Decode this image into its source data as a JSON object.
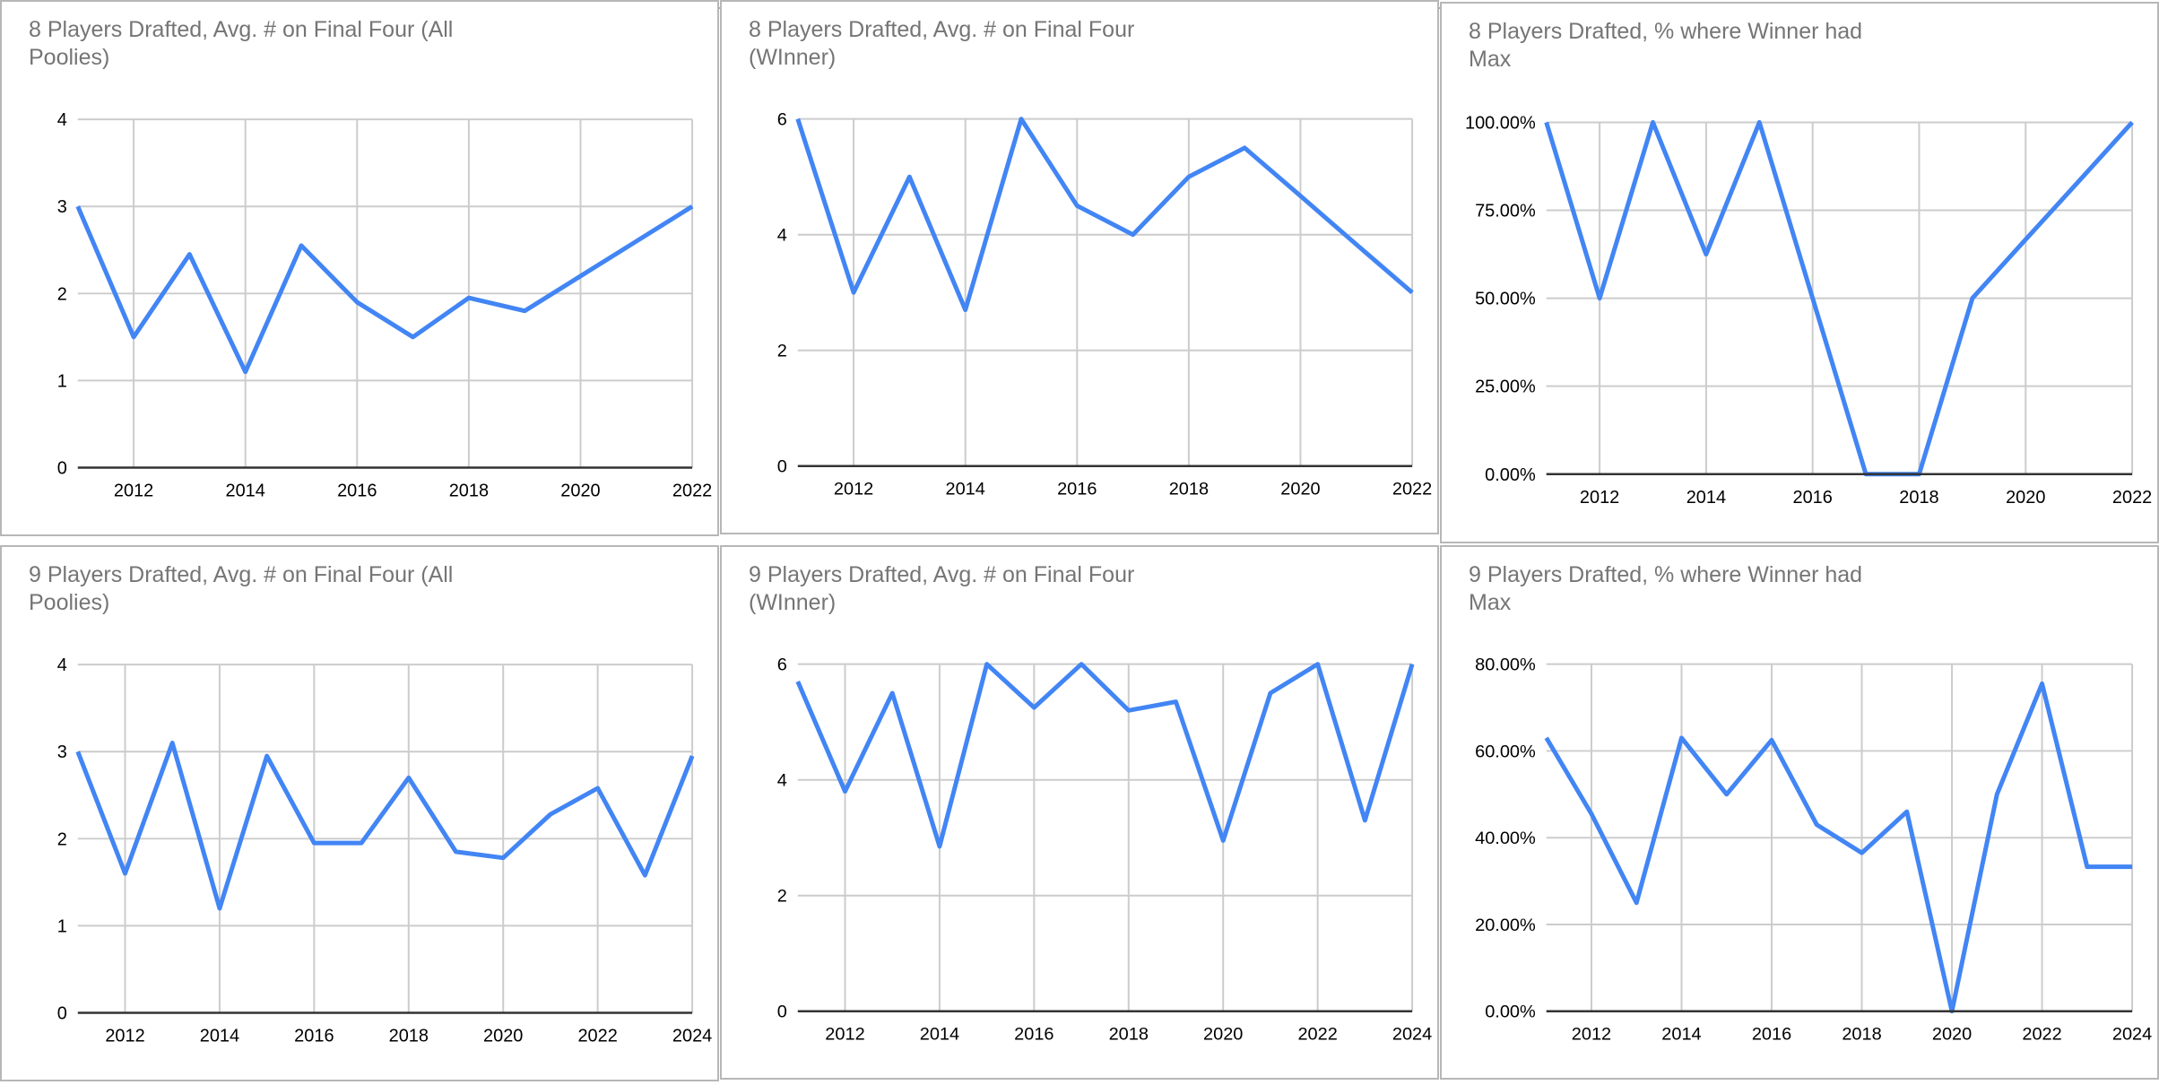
{
  "colors": {
    "line": "#4285f4",
    "title": "#757575",
    "grid": "#cccccc",
    "axis": "#333333",
    "tick_label": "#000000",
    "card_border": "#b7b7b7"
  },
  "chart_data": [
    {
      "type": "line",
      "title": "8 Players Drafted, Avg. # on Final Four (All Poolies)",
      "x": [
        2011,
        2012,
        2013,
        2014,
        2015,
        2016,
        2017,
        2018,
        2019,
        2020,
        2021,
        2022
      ],
      "values": [
        3,
        1.5,
        2.45,
        1.1,
        2.55,
        1.9,
        1.5,
        1.95,
        1.8,
        2.2,
        2.6,
        3
      ],
      "xlim": [
        2011,
        2022
      ],
      "ylim": [
        0,
        4
      ],
      "x_ticks": [
        2012,
        2014,
        2016,
        2018,
        2020,
        2022
      ],
      "x_tick_labels": [
        "2012",
        "2014",
        "2016",
        "2018",
        "2020",
        "2022"
      ],
      "y_ticks": [
        0,
        1,
        2,
        3,
        4
      ],
      "y_tick_labels": [
        "0",
        "1",
        "2",
        "3",
        "4"
      ],
      "grid": true,
      "legend": "none"
    },
    {
      "type": "line",
      "title": "8 Players Drafted, Avg. # on Final Four (WInner)",
      "x": [
        2011,
        2012,
        2013,
        2014,
        2015,
        2016,
        2017,
        2018,
        2019,
        2020,
        2021,
        2022
      ],
      "values": [
        6,
        3,
        5,
        2.7,
        6,
        4.5,
        4,
        5,
        5.5,
        4.67,
        3.83,
        3
      ],
      "xlim": [
        2011,
        2022
      ],
      "ylim": [
        0,
        6
      ],
      "x_ticks": [
        2012,
        2014,
        2016,
        2018,
        2020,
        2022
      ],
      "x_tick_labels": [
        "2012",
        "2014",
        "2016",
        "2018",
        "2020",
        "2022"
      ],
      "y_ticks": [
        0,
        2,
        4,
        6
      ],
      "y_tick_labels": [
        "0",
        "2",
        "4",
        "6"
      ],
      "grid": true,
      "legend": "none"
    },
    {
      "type": "line",
      "title": "8 Players Drafted, % where Winner had Max",
      "x": [
        2011,
        2012,
        2013,
        2014,
        2015,
        2016,
        2017,
        2018,
        2019,
        2020,
        2021,
        2022
      ],
      "values": [
        100,
        50,
        100,
        62.5,
        100,
        50,
        0,
        0,
        50,
        66.7,
        83.3,
        100
      ],
      "xlim": [
        2011,
        2022
      ],
      "ylim": [
        0,
        100
      ],
      "x_ticks": [
        2012,
        2014,
        2016,
        2018,
        2020,
        2022
      ],
      "x_tick_labels": [
        "2012",
        "2014",
        "2016",
        "2018",
        "2020",
        "2022"
      ],
      "y_ticks": [
        0,
        25,
        50,
        75,
        100
      ],
      "y_tick_labels": [
        "0.00%",
        "25.00%",
        "50.00%",
        "75.00%",
        "100.00%"
      ],
      "grid": true,
      "legend": "none"
    },
    {
      "type": "line",
      "title": "9 Players Drafted, Avg. # on Final Four (All Poolies)",
      "x": [
        2011,
        2012,
        2013,
        2014,
        2015,
        2016,
        2017,
        2018,
        2019,
        2020,
        2021,
        2022,
        2023,
        2024
      ],
      "values": [
        3,
        1.6,
        3.1,
        1.2,
        2.95,
        1.95,
        1.95,
        2.7,
        1.85,
        1.78,
        2.28,
        2.58,
        1.58,
        2.95
      ],
      "xlim": [
        2011,
        2024
      ],
      "ylim": [
        0,
        4
      ],
      "x_ticks": [
        2012,
        2014,
        2016,
        2018,
        2020,
        2022,
        2024
      ],
      "x_tick_labels": [
        "2012",
        "2014",
        "2016",
        "2018",
        "2020",
        "2022",
        "2024"
      ],
      "y_ticks": [
        0,
        1,
        2,
        3,
        4
      ],
      "y_tick_labels": [
        "0",
        "1",
        "2",
        "3",
        "4"
      ],
      "grid": true,
      "legend": "none"
    },
    {
      "type": "line",
      "title": "9 Players Drafted, Avg. # on Final Four (WInner)",
      "x": [
        2011,
        2012,
        2013,
        2014,
        2015,
        2016,
        2017,
        2018,
        2019,
        2020,
        2021,
        2022,
        2023,
        2024
      ],
      "values": [
        5.7,
        3.8,
        5.5,
        2.85,
        6,
        5.25,
        6,
        5.2,
        5.35,
        2.95,
        5.5,
        6,
        3.3,
        6
      ],
      "xlim": [
        2011,
        2024
      ],
      "ylim": [
        0,
        6
      ],
      "x_ticks": [
        2012,
        2014,
        2016,
        2018,
        2020,
        2022,
        2024
      ],
      "x_tick_labels": [
        "2012",
        "2014",
        "2016",
        "2018",
        "2020",
        "2022",
        "2024"
      ],
      "y_ticks": [
        0,
        2,
        4,
        6
      ],
      "y_tick_labels": [
        "0",
        "2",
        "4",
        "6"
      ],
      "grid": true,
      "legend": "none"
    },
    {
      "type": "line",
      "title": "9 Players Drafted, % where Winner had Max",
      "x": [
        2011,
        2012,
        2013,
        2014,
        2015,
        2016,
        2017,
        2018,
        2019,
        2020,
        2021,
        2022,
        2023,
        2024
      ],
      "values": [
        63,
        45.5,
        25,
        63,
        50,
        62.5,
        43,
        36.5,
        46,
        0,
        50,
        75.5,
        33.3,
        33.3
      ],
      "xlim": [
        2011,
        2024
      ],
      "ylim": [
        0,
        80
      ],
      "x_ticks": [
        2012,
        2014,
        2016,
        2018,
        2020,
        2022,
        2024
      ],
      "x_tick_labels": [
        "2012",
        "2014",
        "2016",
        "2018",
        "2020",
        "2022",
        "2024"
      ],
      "y_ticks": [
        0,
        20,
        40,
        60,
        80
      ],
      "y_tick_labels": [
        "0.00%",
        "20.00%",
        "40.00%",
        "60.00%",
        "80.00%"
      ],
      "grid": true,
      "legend": "none"
    }
  ]
}
